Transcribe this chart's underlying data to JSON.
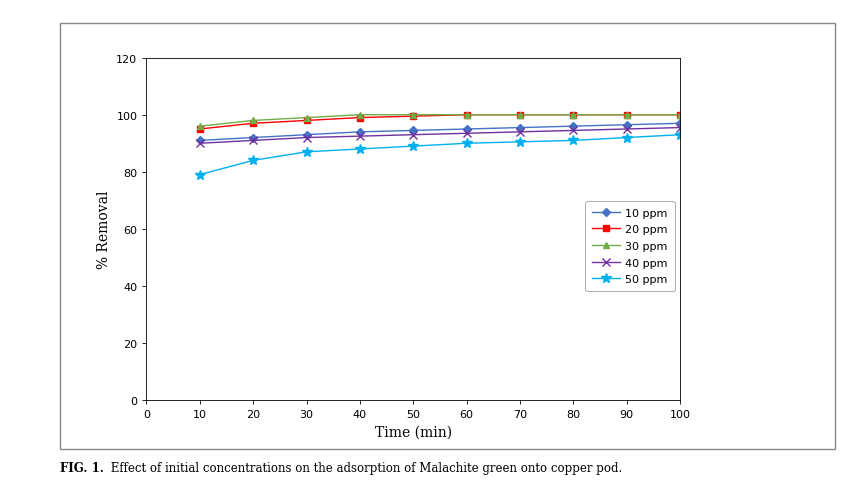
{
  "x": [
    10,
    20,
    30,
    40,
    50,
    60,
    70,
    80,
    90,
    100
  ],
  "series_order": [
    "10 ppm",
    "20 ppm",
    "30 ppm",
    "40 ppm",
    "50 ppm"
  ],
  "series": {
    "10 ppm": {
      "values": [
        91,
        92,
        93,
        94,
        94.5,
        95,
        95.5,
        96,
        96.5,
        97
      ],
      "color": "#4472C4",
      "marker": "D",
      "markersize": 4
    },
    "20 ppm": {
      "values": [
        95,
        97,
        98,
        99,
        99.5,
        100,
        100,
        100,
        100,
        100
      ],
      "color": "#FF0000",
      "marker": "s",
      "markersize": 4
    },
    "30 ppm": {
      "values": [
        96,
        98,
        99,
        100,
        100,
        100,
        100,
        100,
        100,
        100
      ],
      "color": "#70AD47",
      "marker": "^",
      "markersize": 5
    },
    "40 ppm": {
      "values": [
        90,
        91,
        92,
        92.5,
        93,
        93.5,
        94,
        94.5,
        95,
        95.5
      ],
      "color": "#7030A0",
      "marker": "x",
      "markersize": 6,
      "linewidth": 1.0
    },
    "50 ppm": {
      "values": [
        79,
        84,
        87,
        88,
        89,
        90,
        90.5,
        91,
        92,
        93
      ],
      "color": "#00B0F0",
      "marker": "*",
      "markersize": 7
    }
  },
  "xlabel": "Time (min)",
  "ylabel": "% Removal",
  "ylim": [
    0,
    120
  ],
  "xlim": [
    0,
    100
  ],
  "yticks": [
    0,
    20,
    40,
    60,
    80,
    100,
    120
  ],
  "xticks": [
    0,
    10,
    20,
    30,
    40,
    50,
    60,
    70,
    80,
    90,
    100
  ],
  "legend_loc": "center right",
  "caption_prefix": "FIG. 1.",
  "caption_rest": " Effect of initial concentrations on the adsorption of Malachite green onto copper pod.",
  "bg_color": "#FFFFFF",
  "plot_bg_color": "#FFFFFF",
  "border_color": "#AAAAAA"
}
